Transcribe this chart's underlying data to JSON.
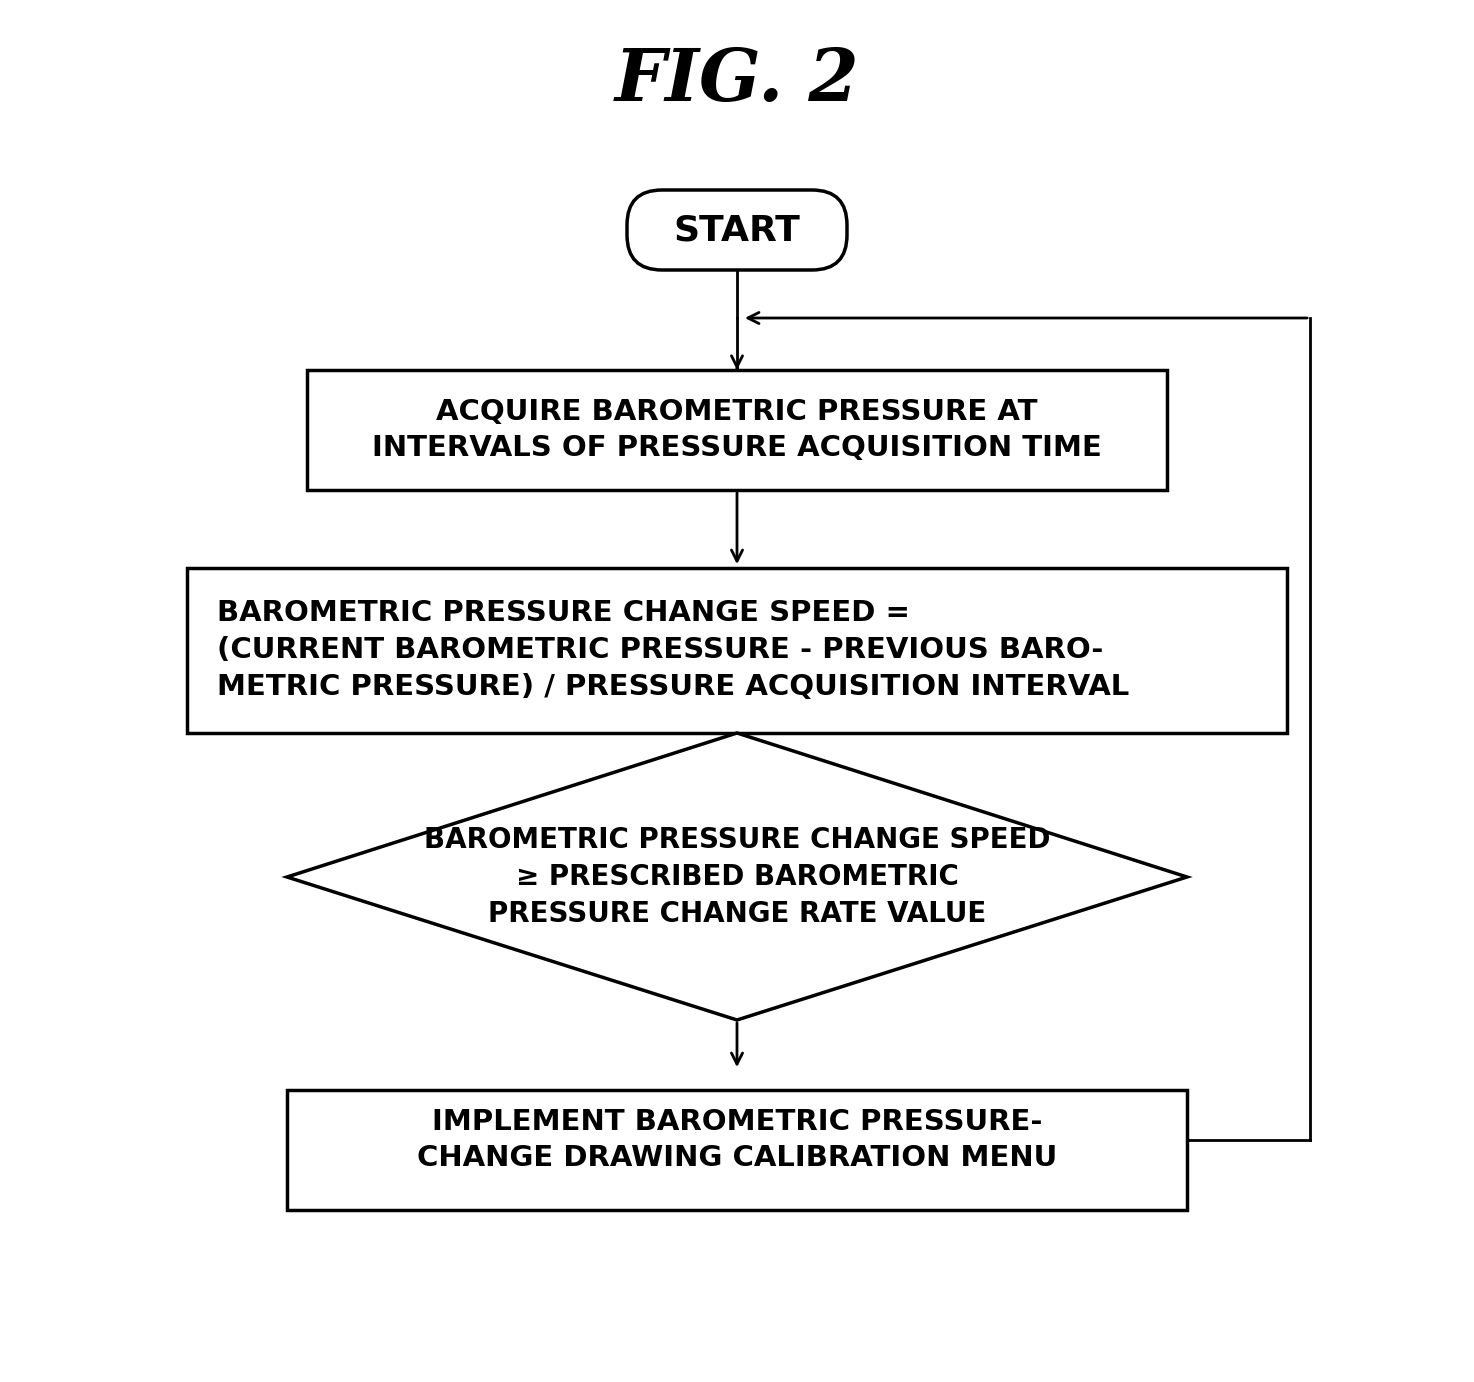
{
  "title": "FIG. 2",
  "bg_color": "#ffffff",
  "box_color": "#ffffff",
  "border_color": "#000000",
  "text_color": "#000000",
  "start_label": "START",
  "box1_text": "ACQUIRE BAROMETRIC PRESSURE AT\nINTERVALS OF PRESSURE ACQUISITION TIME",
  "box2_text": "BAROMETRIC PRESSURE CHANGE SPEED =\n(CURRENT BAROMETRIC PRESSURE - PREVIOUS BARO-\nMETRIC PRESSURE) / PRESSURE ACQUISITION INTERVAL",
  "diamond_text": "BAROMETRIC PRESSURE CHANGE SPEED\n≥ PRESCRIBED BAROMETRIC\nPRESSURE CHANGE RATE VALUE",
  "box3_text": "IMPLEMENT BAROMETRIC PRESSURE-\nCHANGE DRAWING CALIBRATION MENU",
  "line_color": "#000000",
  "line_width": 2.0,
  "border_width": 2.5
}
